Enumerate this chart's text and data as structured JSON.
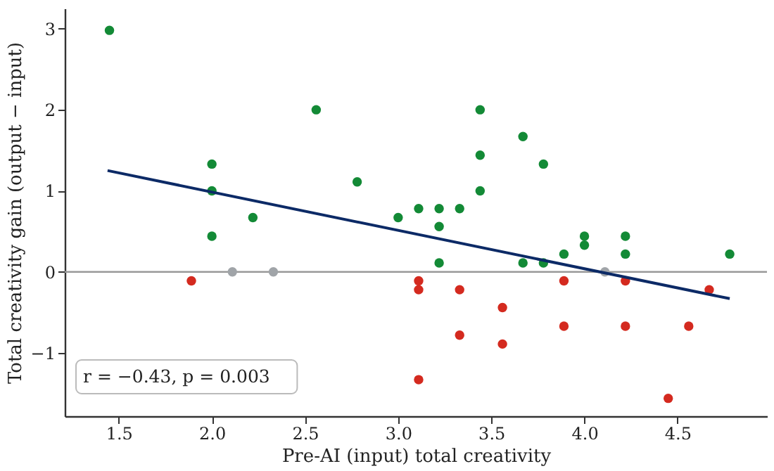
{
  "chart_data": {
    "type": "scatter",
    "xlabel": "Pre-AI (input) total creativity",
    "ylabel": "Total creativity gain (output − input)",
    "xlim": [
      1.21,
      4.98
    ],
    "ylim": [
      -1.78,
      3.25
    ],
    "xticks": [
      1.5,
      {
        "value": 2,
        "label": "2.0"
      },
      2.5,
      {
        "value": 3,
        "label": "3.0"
      },
      3.5,
      {
        "value": 4,
        "label": "4.0"
      },
      4.5
    ],
    "yticks": [
      {
        "value": -1,
        "label": "−1"
      },
      0,
      1,
      2,
      3
    ],
    "grid": false,
    "marker": "circle",
    "series": [
      {
        "color": "#138a36",
        "x": [
          1.45,
          2.0,
          2.0,
          2.0,
          2.22,
          2.56,
          2.78,
          3.0,
          3.11,
          3.22,
          3.22,
          3.22,
          3.33,
          3.44,
          3.44,
          3.44,
          3.67,
          3.67,
          3.78,
          3.78,
          3.89,
          4.0,
          4.0,
          4.22,
          4.22,
          4.78
        ],
        "values": [
          2.98,
          1.33,
          1.0,
          0.44,
          0.67,
          2.0,
          1.11,
          0.67,
          0.78,
          0.78,
          0.56,
          0.11,
          0.78,
          2.0,
          1.44,
          1.0,
          1.67,
          0.11,
          1.33,
          0.11,
          0.22,
          0.44,
          0.33,
          0.44,
          0.22,
          0.22
        ]
      },
      {
        "color": "#d42a1f",
        "x": [
          1.89,
          3.11,
          3.11,
          3.11,
          3.33,
          3.33,
          3.56,
          3.56,
          3.89,
          3.89,
          4.22,
          4.22,
          4.45,
          4.56,
          4.67
        ],
        "values": [
          -0.11,
          -0.11,
          -0.22,
          -1.33,
          -0.22,
          -0.78,
          -0.44,
          -0.89,
          -0.11,
          -0.67,
          -0.11,
          -0.67,
          -1.56,
          -0.67,
          -0.22
        ]
      },
      {
        "color": "#a0a4a8",
        "x": [
          2.11,
          2.33,
          4.11
        ],
        "values": [
          0,
          0,
          0
        ]
      },
      {
        "type": "line",
        "marker": "none",
        "line_style": "solid",
        "color": "#0c2a66",
        "x": [
          1.44,
          4.78
        ],
        "values": [
          1.25,
          -0.33
        ]
      }
    ],
    "ref_lines": [
      {
        "axis": "y",
        "value": 0,
        "color": "#999999"
      }
    ],
    "annotations": [
      "r = −0.43,  p = 0.003"
    ]
  }
}
